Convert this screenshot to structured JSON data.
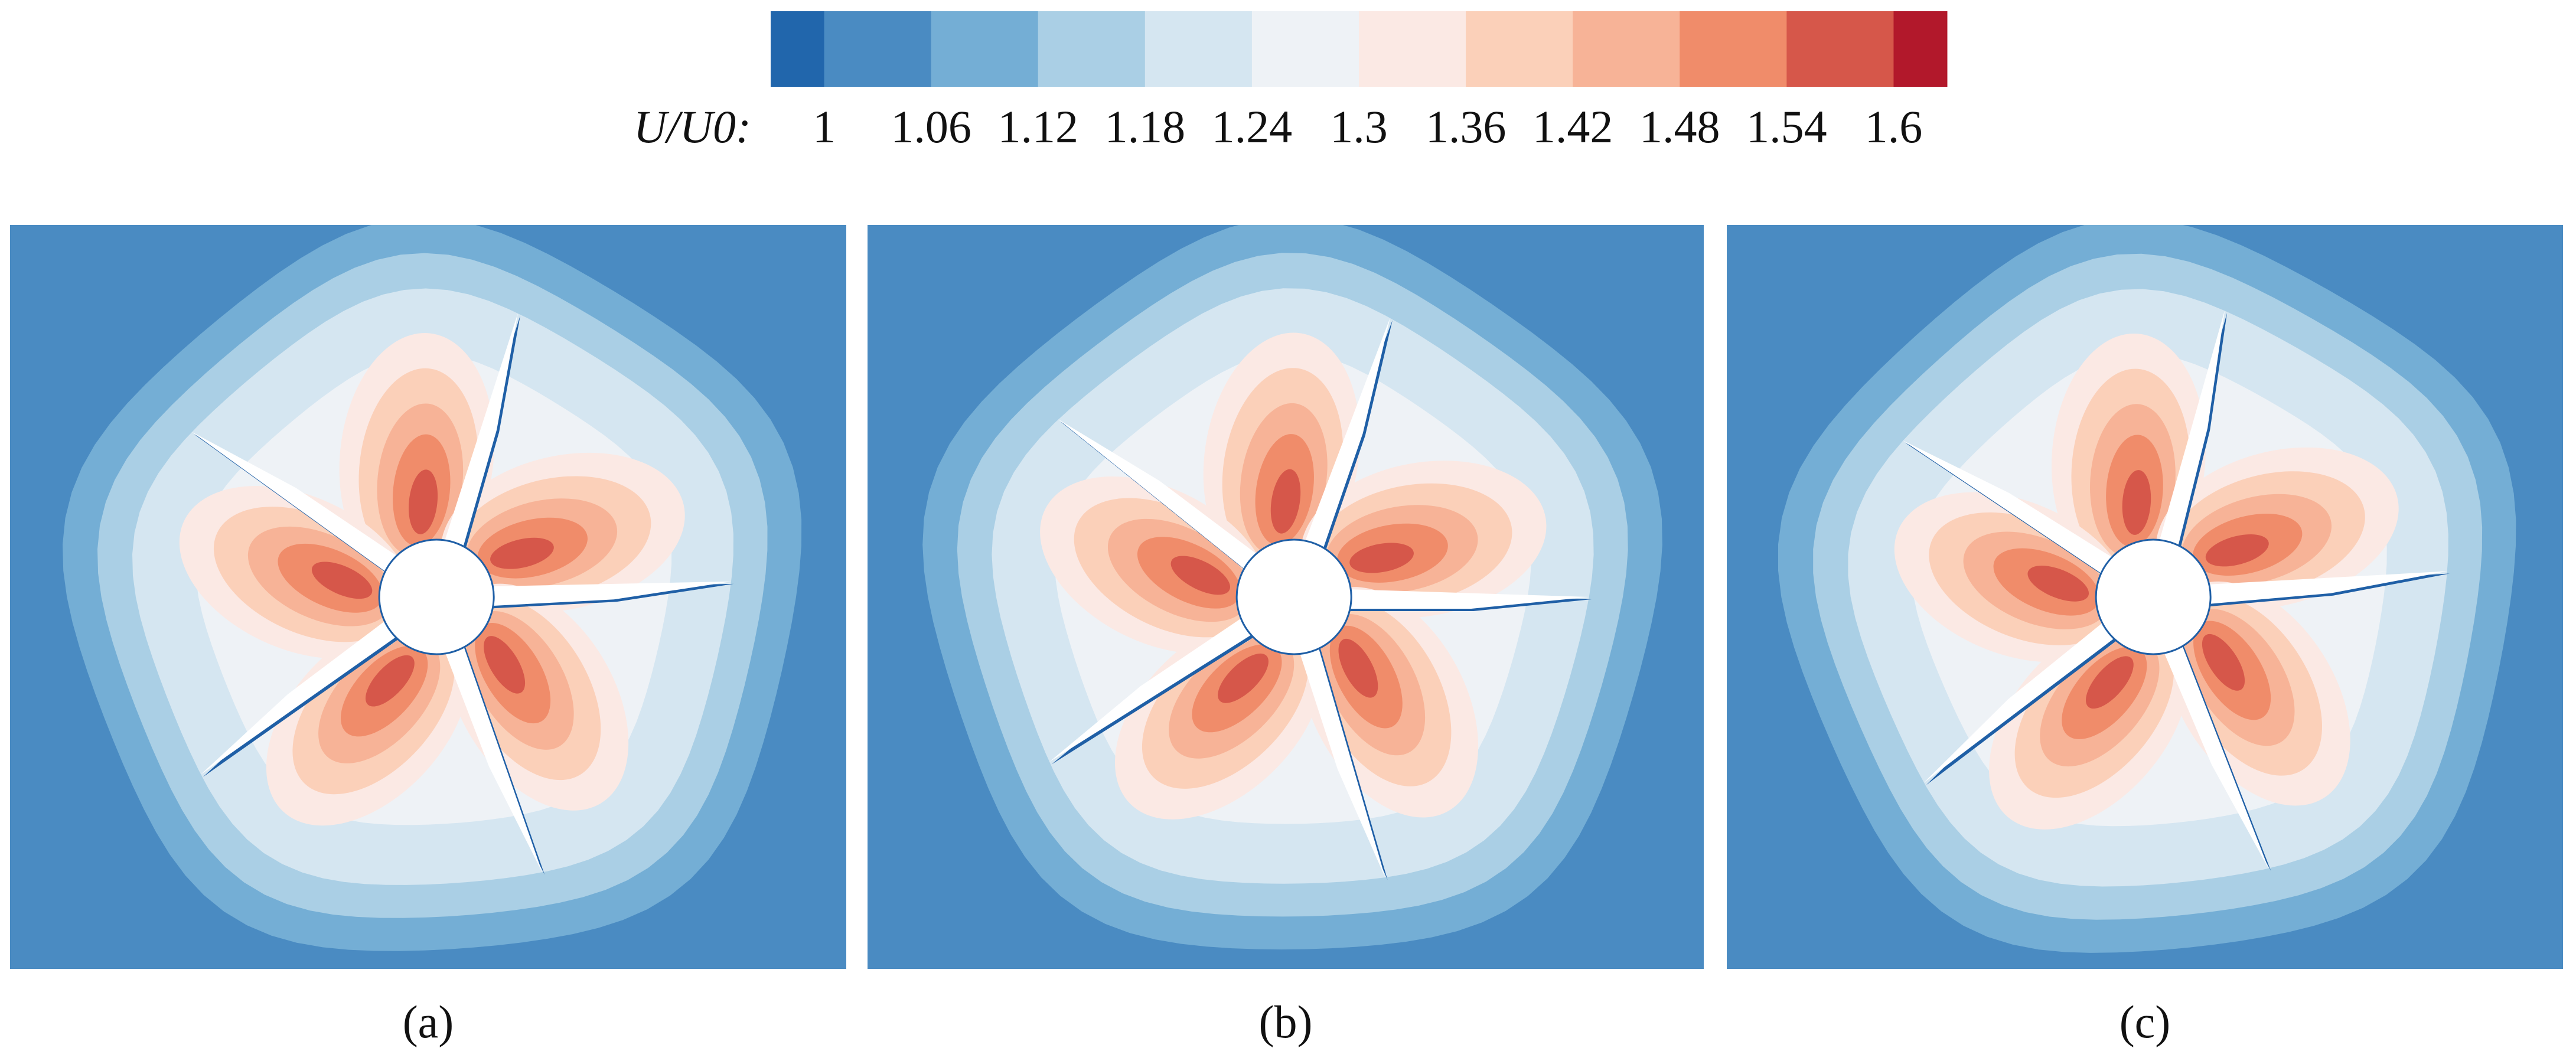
{
  "colorbar": {
    "label": "U/U0:",
    "colors": [
      "#2166ac",
      "#4a8bc2",
      "#74aed5",
      "#aacfe5",
      "#d5e6f1",
      "#eef2f6",
      "#fbe9e4",
      "#fbd0b9",
      "#f7b397",
      "#f08c6a",
      "#d6574a",
      "#b2182b"
    ],
    "ticks": [
      1,
      1.06,
      1.12,
      1.18,
      1.24,
      1.3,
      1.36,
      1.42,
      1.48,
      1.54,
      1.6
    ]
  },
  "panels": [
    {
      "label": "(a)"
    },
    {
      "label": "(b)"
    },
    {
      "label": "(c)"
    }
  ]
}
